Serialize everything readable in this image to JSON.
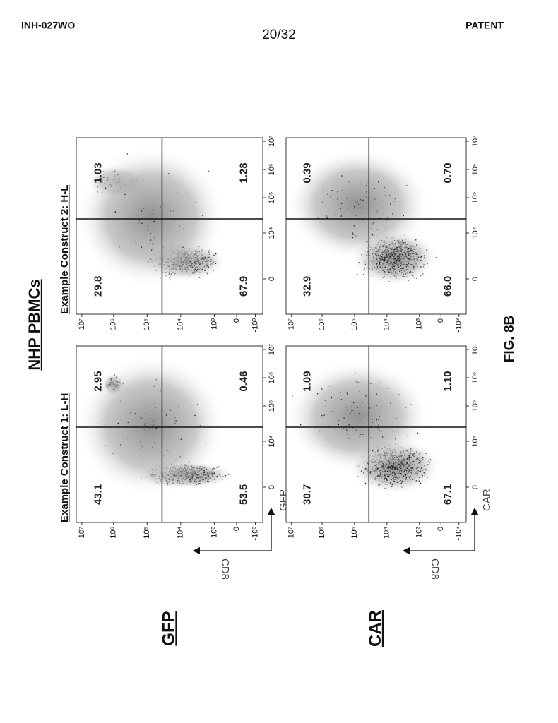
{
  "header": {
    "left": "INH-027WO",
    "page": "20/32",
    "right": "PATENT"
  },
  "figure": {
    "title": "NHP PBMCs",
    "label": "FIG. 8B",
    "y_axis_label": "CD8",
    "y_tick_labels": [
      "10⁷",
      "10⁶",
      "10⁵",
      "10⁴",
      "10³",
      "0",
      "-10³"
    ],
    "x_tick_labels": [
      "0",
      "10⁴",
      "10⁵",
      "10⁶",
      "10⁷"
    ],
    "rows": [
      {
        "label": "GFP",
        "x_axis_label": "GFP",
        "panels": [
          {
            "title": "Example Construct 1: L-H",
            "quadrants": [
              "43.1",
              "2.95",
              "53.5",
              "0.46"
            ]
          },
          {
            "title": "Example Construct 2: H-L",
            "quadrants": [
              "29.8",
              "1.03",
              "67.9",
              "1.28"
            ]
          }
        ]
      },
      {
        "label": "CAR",
        "x_axis_label": "CAR",
        "panels": [
          {
            "quadrants": [
              "30.7",
              "1.09",
              "67.1",
              "1.10"
            ]
          },
          {
            "quadrants": [
              "32.9",
              "0.39",
              "66.0",
              "0.70"
            ]
          }
        ]
      }
    ]
  }
}
